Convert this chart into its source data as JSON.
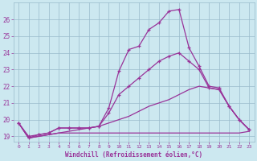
{
  "xlabel": "Windchill (Refroidissement éolien,°C)",
  "background_color": "#cce8f0",
  "line_color": "#993399",
  "grid_color": "#99bbcc",
  "xlim": [
    -0.5,
    23.5
  ],
  "ylim": [
    18.7,
    27.0
  ],
  "xticks": [
    0,
    1,
    2,
    3,
    4,
    5,
    6,
    7,
    8,
    9,
    10,
    11,
    12,
    13,
    14,
    15,
    16,
    17,
    18,
    19,
    20,
    21,
    22,
    23
  ],
  "yticks": [
    19,
    20,
    21,
    22,
    23,
    24,
    25,
    26
  ],
  "line1_x": [
    0,
    1,
    2,
    3,
    4,
    5,
    6,
    7,
    8,
    9,
    10,
    11,
    12,
    13,
    14,
    15,
    16,
    17,
    18,
    19,
    20,
    21,
    22,
    23
  ],
  "line1_y": [
    19.8,
    19.0,
    19.1,
    19.2,
    19.5,
    19.5,
    19.5,
    19.5,
    19.6,
    20.7,
    22.9,
    24.2,
    24.4,
    25.4,
    25.8,
    26.5,
    26.6,
    24.3,
    23.2,
    22.0,
    21.9,
    20.8,
    20.0,
    19.4
  ],
  "line2_x": [
    0,
    1,
    2,
    3,
    4,
    5,
    6,
    7,
    8,
    9,
    10,
    11,
    12,
    13,
    14,
    15,
    16,
    17,
    18,
    19,
    20,
    21,
    22,
    23
  ],
  "line2_y": [
    19.8,
    18.9,
    19.1,
    19.2,
    19.5,
    19.5,
    19.5,
    19.5,
    19.6,
    20.4,
    21.5,
    22.0,
    22.5,
    23.0,
    23.5,
    23.8,
    24.0,
    23.5,
    23.0,
    21.9,
    21.8,
    20.8,
    20.0,
    19.4
  ],
  "line3_x": [
    0,
    1,
    2,
    3,
    4,
    5,
    6,
    7,
    8,
    9,
    10,
    11,
    12,
    13,
    14,
    15,
    16,
    17,
    18,
    19,
    20,
    21,
    22,
    23
  ],
  "line3_y": [
    19.8,
    18.9,
    19.0,
    19.1,
    19.2,
    19.2,
    19.2,
    19.2,
    19.2,
    19.2,
    19.2,
    19.2,
    19.2,
    19.2,
    19.2,
    19.2,
    19.2,
    19.2,
    19.2,
    19.2,
    19.2,
    19.2,
    19.2,
    19.3
  ],
  "line4_x": [
    0,
    1,
    2,
    3,
    4,
    5,
    6,
    7,
    8,
    9,
    10,
    11,
    12,
    13,
    14,
    15,
    16,
    17,
    18,
    19,
    20,
    21,
    22,
    23
  ],
  "line4_y": [
    19.8,
    18.9,
    19.0,
    19.1,
    19.2,
    19.3,
    19.4,
    19.5,
    19.6,
    19.8,
    20.0,
    20.2,
    20.5,
    20.8,
    21.0,
    21.2,
    21.5,
    21.8,
    22.0,
    21.9,
    21.8,
    20.8,
    20.0,
    19.4
  ]
}
